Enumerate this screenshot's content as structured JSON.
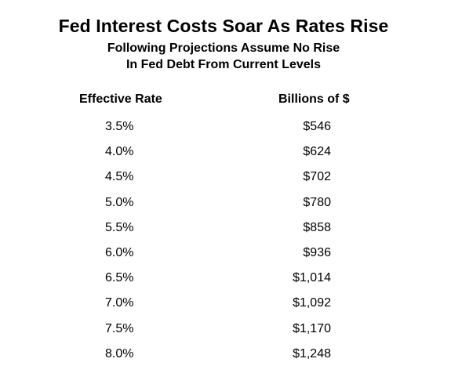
{
  "chart_data": {
    "type": "table",
    "title": "Fed Interest Costs Soar As Rates Rise",
    "subtitle_lines": [
      "Following Projections Assume No Rise",
      "In Fed Debt From Current Levels"
    ],
    "columns": [
      "Effective Rate",
      "Billions of $"
    ],
    "rows": [
      {
        "rate": "3.5%",
        "amount": "$546"
      },
      {
        "rate": "4.0%",
        "amount": "$624"
      },
      {
        "rate": "4.5%",
        "amount": "$702"
      },
      {
        "rate": "5.0%",
        "amount": "$780"
      },
      {
        "rate": "5.5%",
        "amount": "$858"
      },
      {
        "rate": "6.0%",
        "amount": "$936"
      },
      {
        "rate": "6.5%",
        "amount": "$1,014"
      },
      {
        "rate": "7.0%",
        "amount": "$1,092"
      },
      {
        "rate": "7.5%",
        "amount": "$1,170"
      },
      {
        "rate": "8.0%",
        "amount": "$1,248"
      }
    ]
  }
}
